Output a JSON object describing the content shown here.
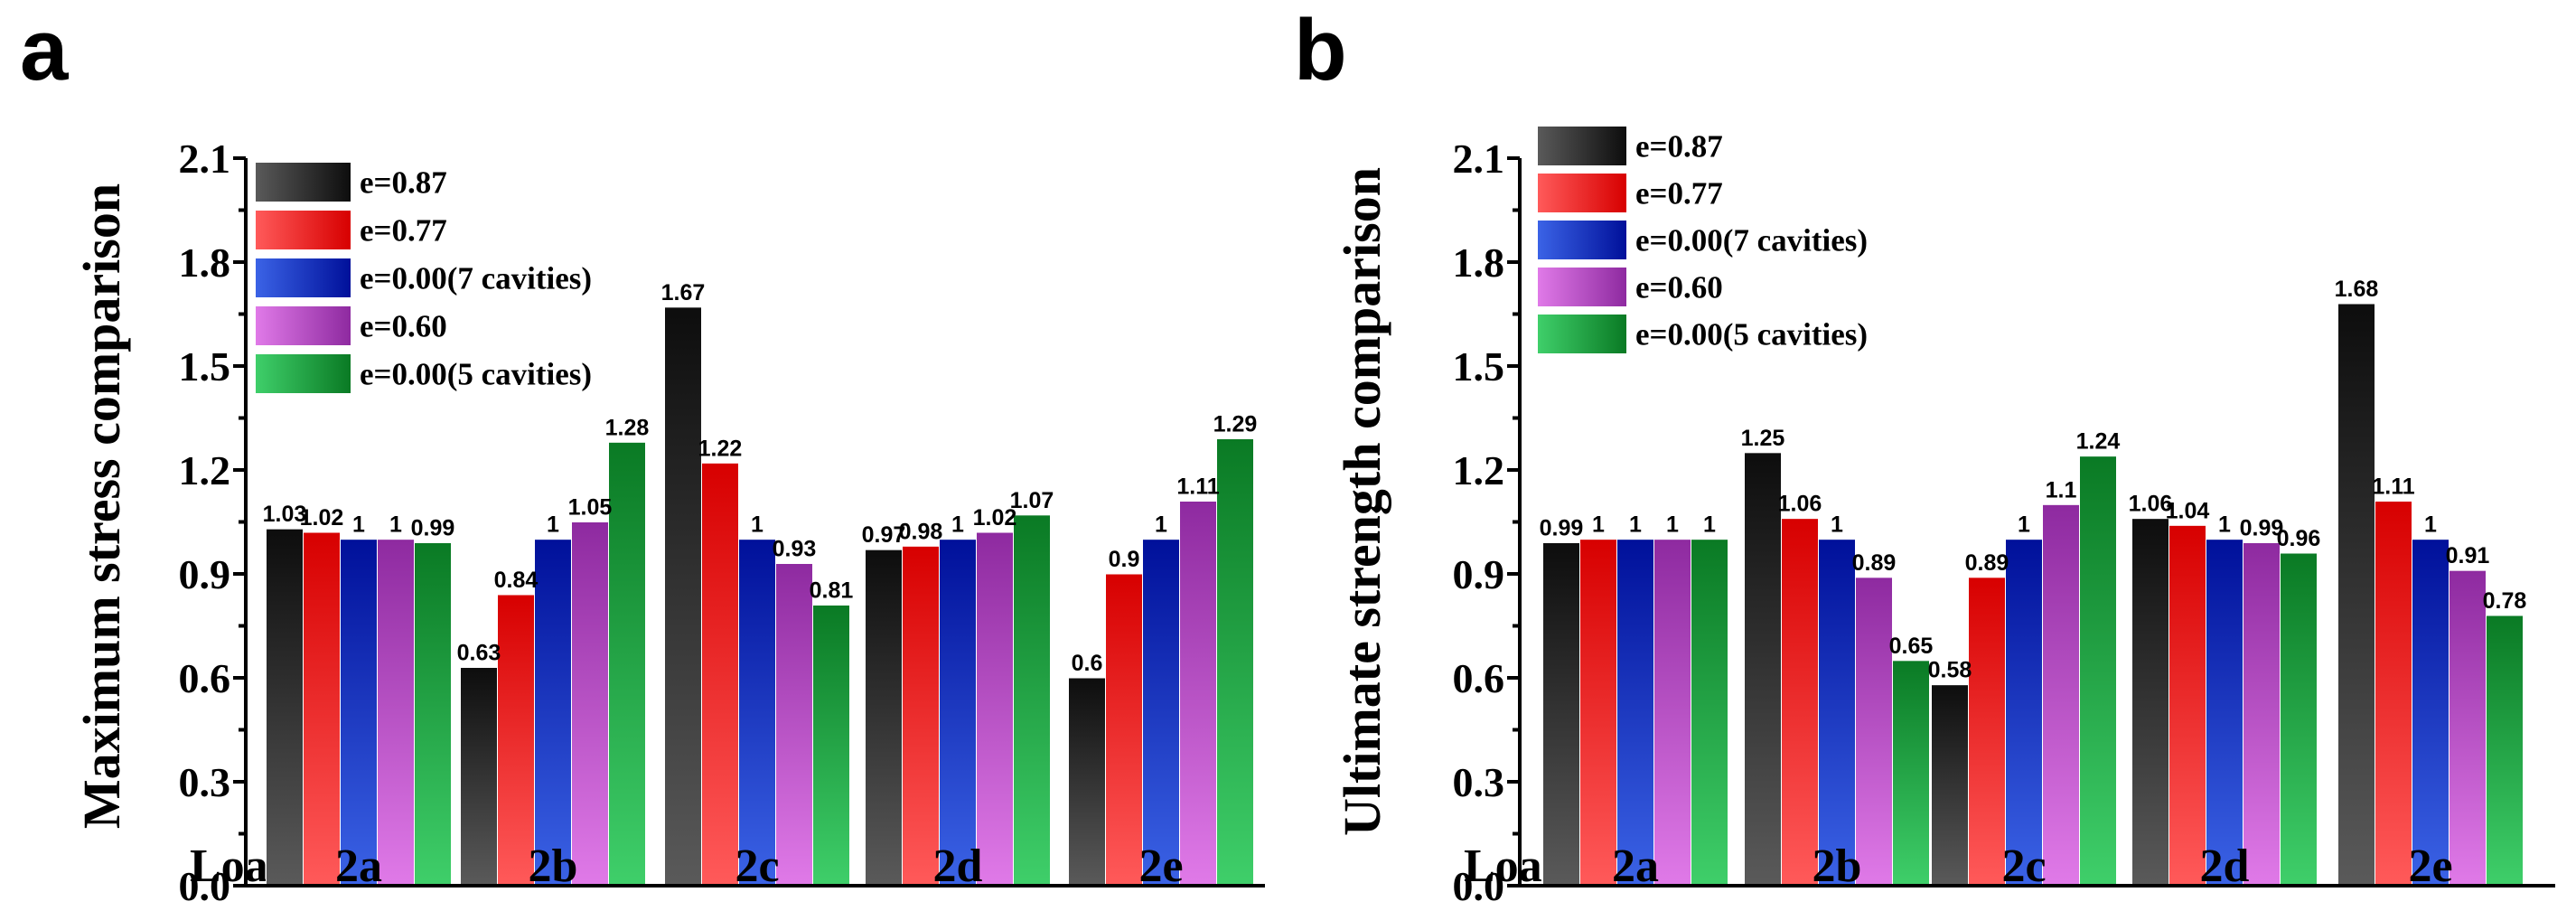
{
  "series_names": [
    "e=0.87",
    "e=0.77",
    "e=0.00(7 cavities)",
    "e=0.60",
    "e=0.00(5 cavities)"
  ],
  "colors": {
    "black": [
      "#5a5a5a",
      "#0d0d0d"
    ],
    "red": [
      "#ff5a5a",
      "#d70000"
    ],
    "blue": [
      "#3b63e6",
      "#00109a"
    ],
    "purple": [
      "#e07ae8",
      "#8e2aa0"
    ],
    "green": [
      "#3fcf6a",
      "#0a7a24"
    ]
  },
  "chart_data": [
    {
      "panel": "a",
      "type": "bar",
      "title": "",
      "xlabel": "Load",
      "ylabel": "Maximum stress comparison",
      "categories": [
        "2a",
        "2b",
        "2c",
        "2d",
        "2e"
      ],
      "ylim": [
        0.0,
        2.1
      ],
      "yticks": [
        "0.0",
        "0.3",
        "0.6",
        "0.9",
        "1.2",
        "1.5",
        "1.8",
        "2.1"
      ],
      "legend": "top-left",
      "series": [
        {
          "name": "e=0.87",
          "values": [
            1.03,
            0.63,
            1.67,
            0.97,
            0.6
          ],
          "labels": [
            "1.03",
            "0.63",
            "1.67",
            "0.97",
            "0.6"
          ]
        },
        {
          "name": "e=0.77",
          "values": [
            1.02,
            0.84,
            1.22,
            0.98,
            0.9
          ],
          "labels": [
            "1.02",
            "0.84",
            "1.22",
            "0.98",
            "0.9"
          ]
        },
        {
          "name": "e=0.00(7 cavities)",
          "values": [
            1,
            1,
            1,
            1,
            1
          ],
          "labels": [
            "1",
            "1",
            "1",
            "1",
            "1"
          ]
        },
        {
          "name": "e=0.60",
          "values": [
            1,
            1.05,
            0.93,
            1.02,
            1.11
          ],
          "labels": [
            "1",
            "1.05",
            "0.93",
            "1.02",
            "1.11"
          ]
        },
        {
          "name": "e=0.00(5 cavities)",
          "values": [
            0.99,
            1.28,
            0.81,
            1.07,
            1.29
          ],
          "labels": [
            "0.99",
            "1.28",
            "0.81",
            "1.07",
            "1.29"
          ]
        }
      ]
    },
    {
      "panel": "b",
      "type": "bar",
      "title": "",
      "xlabel": "Load",
      "ylabel": "Ultimate strength comparison",
      "categories": [
        "2a",
        "2b",
        "2c",
        "2d",
        "2e"
      ],
      "ylim": [
        0.0,
        2.1
      ],
      "yticks": [
        "0.0",
        "0.3",
        "0.6",
        "0.9",
        "1.2",
        "1.5",
        "1.8",
        "2.1"
      ],
      "legend": "top-left",
      "series": [
        {
          "name": "e=0.87",
          "values": [
            0.99,
            1.25,
            0.58,
            1.06,
            1.68
          ],
          "labels": [
            "0.99",
            "1.25",
            "0.58",
            "1.06",
            "1.68"
          ]
        },
        {
          "name": "e=0.77",
          "values": [
            1,
            1.06,
            0.89,
            1.04,
            1.11
          ],
          "labels": [
            "1",
            "1.06",
            "0.89",
            "1.04",
            "1.11"
          ]
        },
        {
          "name": "e=0.00(7 cavities)",
          "values": [
            1,
            1,
            1,
            1,
            1
          ],
          "labels": [
            "1",
            "1",
            "1",
            "1",
            "1"
          ]
        },
        {
          "name": "e=0.60",
          "values": [
            1,
            0.89,
            1.1,
            0.99,
            0.91
          ],
          "labels": [
            "1",
            "0.89",
            "1.1",
            "0.99",
            "0.91"
          ]
        },
        {
          "name": "e=0.00(5 cavities)",
          "values": [
            1,
            0.65,
            1.24,
            0.96,
            0.78
          ],
          "labels": [
            "1",
            "0.65",
            "1.24",
            "0.96",
            "0.78"
          ]
        }
      ]
    }
  ]
}
